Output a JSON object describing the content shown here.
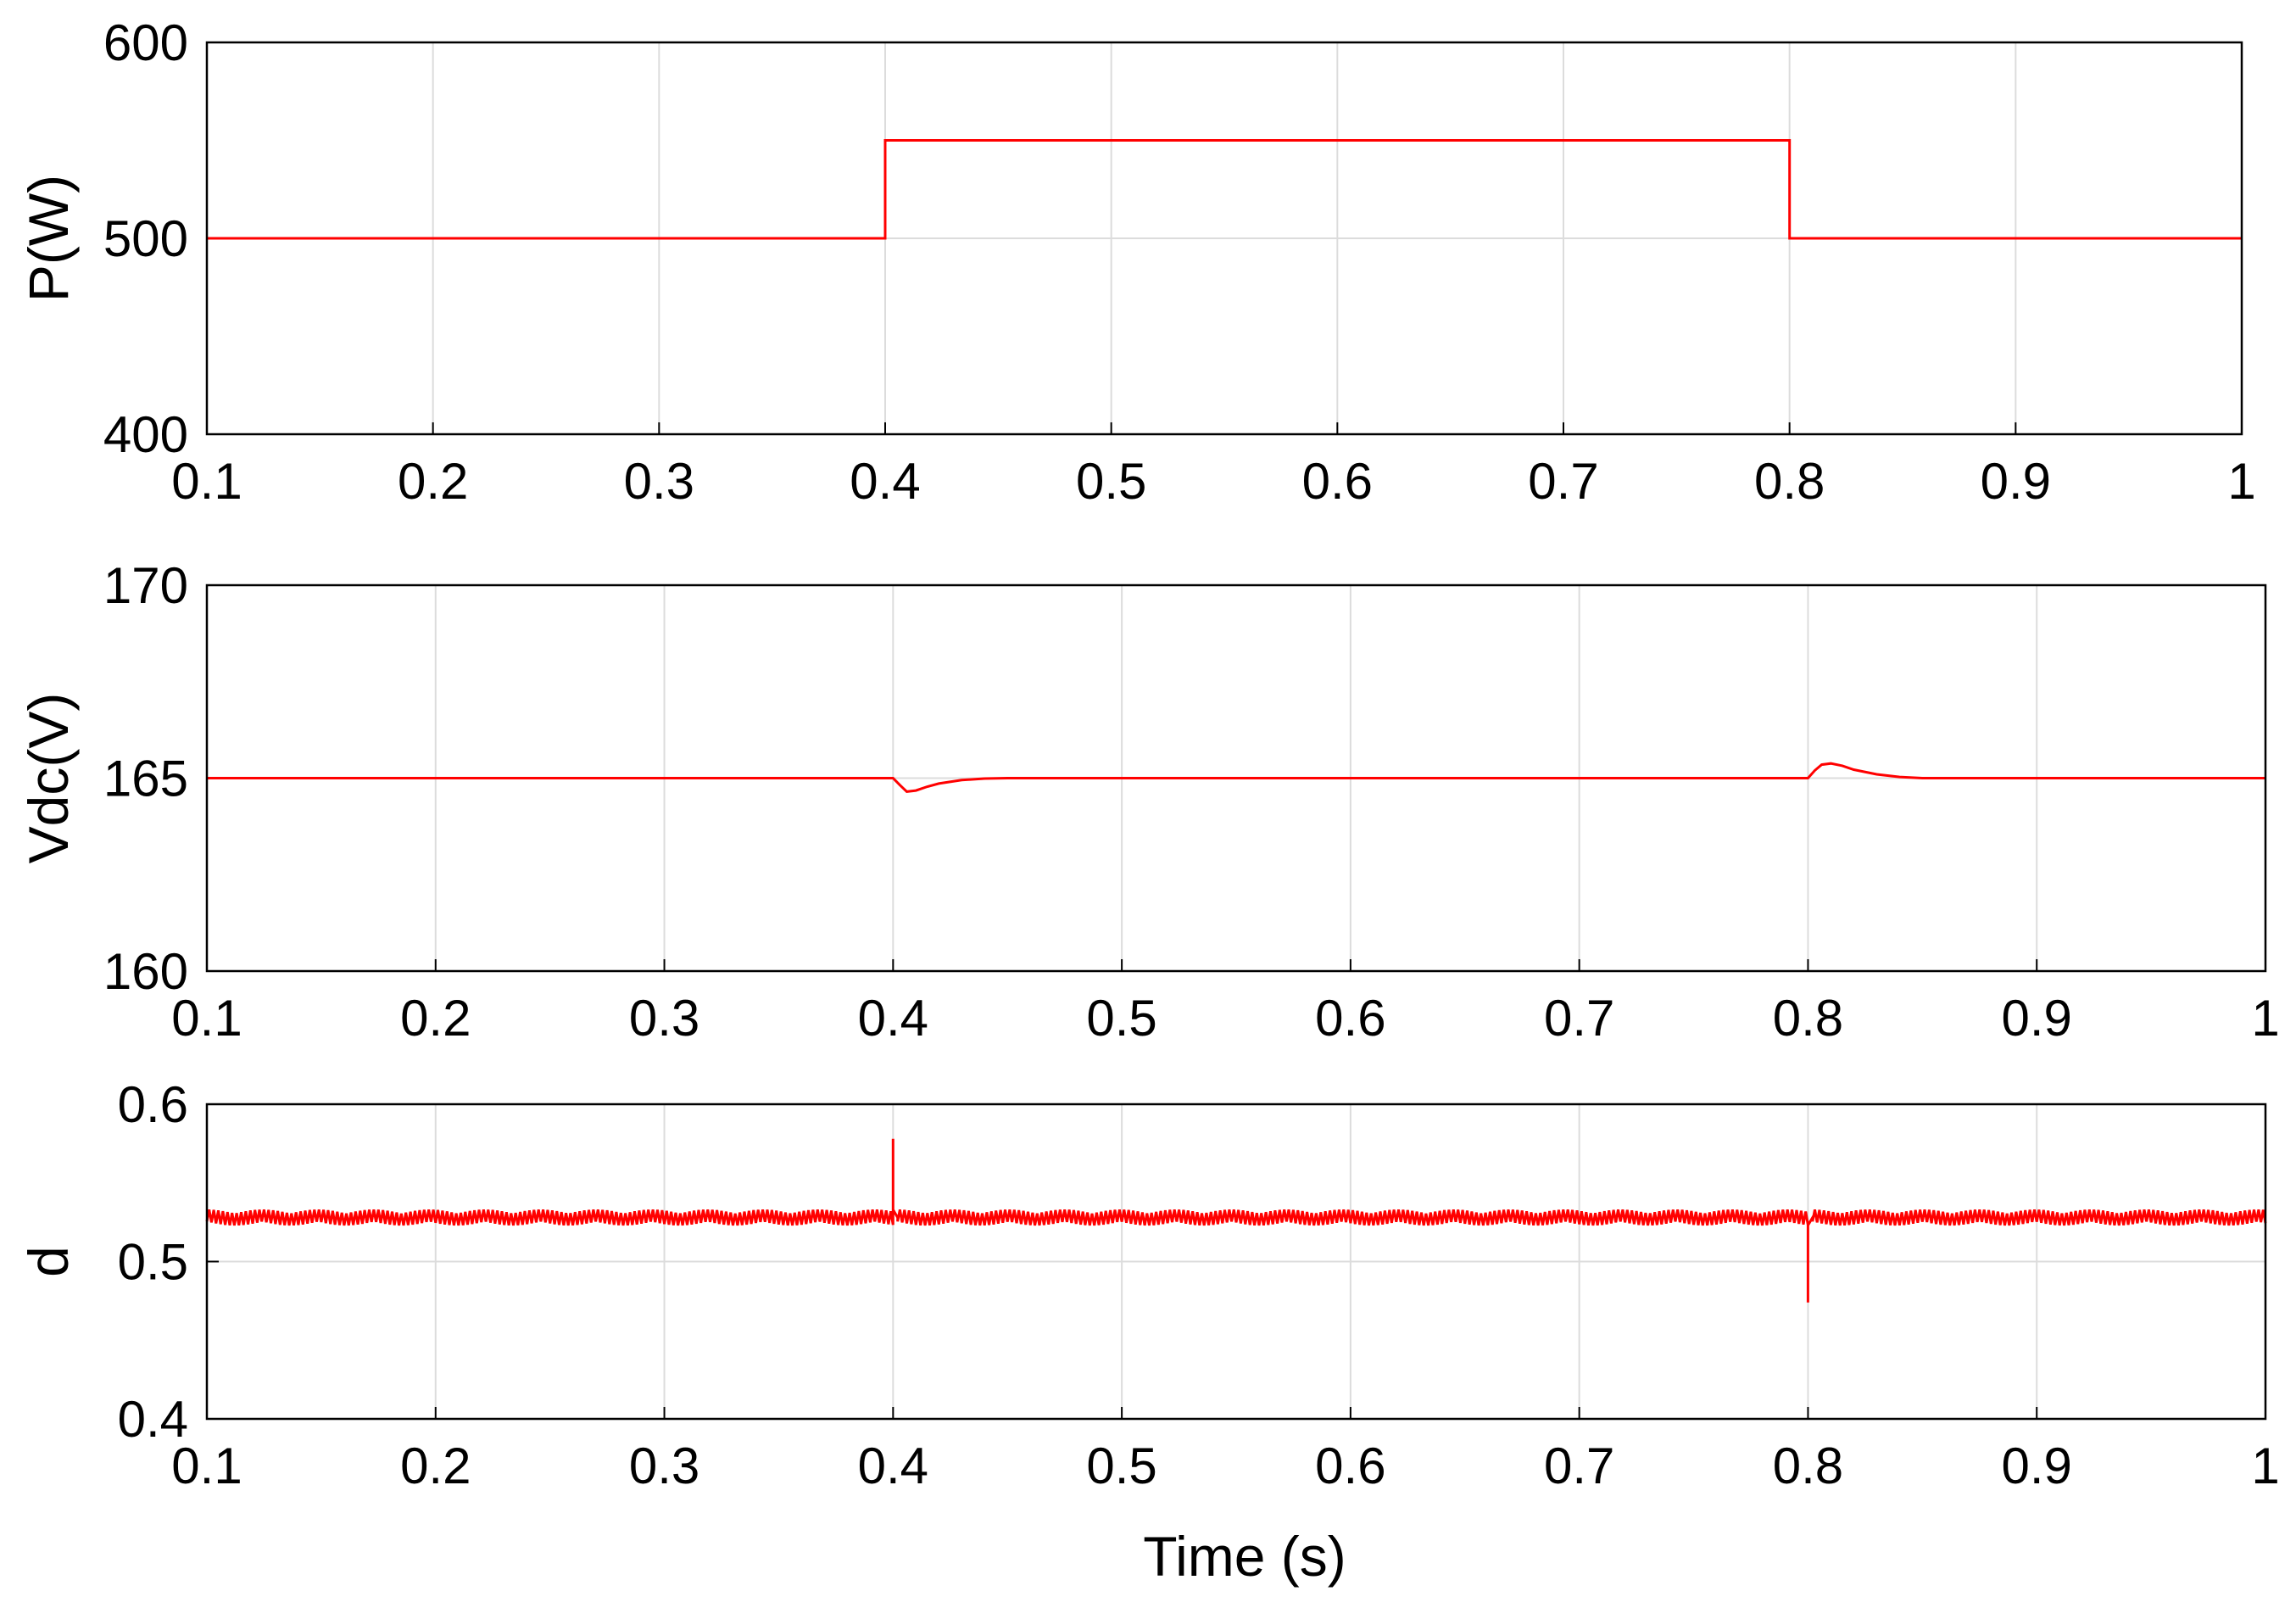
{
  "colors": {
    "series": "#ff0000",
    "grid": "#dcdcdc",
    "axis": "#000000"
  },
  "xlabel": "Time (s)",
  "chart_data": [
    {
      "type": "line",
      "title": "",
      "ylabel": "P(W)",
      "xlim": [
        0.1,
        1.0
      ],
      "ylim": [
        400,
        600
      ],
      "xticks": [
        "0.1",
        "0.2",
        "0.3",
        "0.4",
        "0.5",
        "0.6",
        "0.7",
        "0.8",
        "0.9",
        "1"
      ],
      "yticks": [
        "400",
        "500",
        "600"
      ],
      "grid": true,
      "series": [
        {
          "x": [
            0.1,
            0.4,
            0.4,
            0.8,
            0.8,
            1.0
          ],
          "y": [
            500,
            500,
            550,
            550,
            500,
            500
          ]
        }
      ]
    },
    {
      "type": "line",
      "title": "",
      "ylabel": "Vdc(V)",
      "xlim": [
        0.1,
        1.0
      ],
      "ylim": [
        160,
        170
      ],
      "xticks": [
        "0.1",
        "0.2",
        "0.3",
        "0.4",
        "0.5",
        "0.6",
        "0.7",
        "0.8",
        "0.9",
        "1"
      ],
      "yticks": [
        "160",
        "165",
        "170"
      ],
      "grid": true,
      "series": [
        {
          "x": [
            0.1,
            0.4,
            0.403,
            0.406,
            0.41,
            0.415,
            0.42,
            0.43,
            0.44,
            0.45,
            0.8,
            0.803,
            0.806,
            0.81,
            0.815,
            0.82,
            0.83,
            0.84,
            0.85,
            1.0
          ],
          "y": [
            165,
            165,
            164.82,
            164.65,
            164.68,
            164.78,
            164.86,
            164.95,
            164.99,
            165,
            165,
            165.2,
            165.35,
            165.38,
            165.32,
            165.22,
            165.1,
            165.03,
            165,
            165
          ]
        }
      ]
    },
    {
      "type": "line",
      "title": "",
      "ylabel": "d",
      "xlim": [
        0.1,
        1.0
      ],
      "ylim": [
        0.4,
        0.6
      ],
      "xticks": [
        "0.1",
        "0.2",
        "0.3",
        "0.4",
        "0.5",
        "0.6",
        "0.7",
        "0.8",
        "0.9",
        "1"
      ],
      "yticks": [
        "0.4",
        "0.5",
        "0.6"
      ],
      "grid": true,
      "series": [
        {
          "mean": 0.528,
          "ripple": 0.005,
          "x": [
            0.1,
            0.4,
            0.4,
            0.4,
            0.402,
            0.8,
            0.8,
            0.8,
            0.802,
            1.0
          ],
          "y": [
            0.528,
            0.528,
            0.578,
            0.533,
            0.528,
            0.528,
            0.474,
            0.523,
            0.528,
            0.528
          ]
        }
      ]
    }
  ]
}
